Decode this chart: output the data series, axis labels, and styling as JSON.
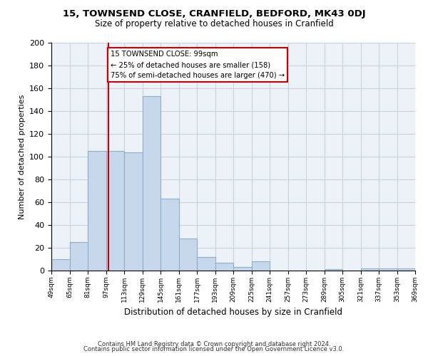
{
  "title": "15, TOWNSEND CLOSE, CRANFIELD, BEDFORD, MK43 0DJ",
  "subtitle": "Size of property relative to detached houses in Cranfield",
  "xlabel": "Distribution of detached houses by size in Cranfield",
  "ylabel": "Number of detached properties",
  "bar_color": "#c8d8ec",
  "bar_edge_color": "#8eaece",
  "vline_x": 99,
  "vline_color": "#cc0000",
  "annotation_lines": [
    "15 TOWNSEND CLOSE: 99sqm",
    "← 25% of detached houses are smaller (158)",
    "75% of semi-detached houses are larger (470) →"
  ],
  "annotation_box_color": "#ffffff",
  "annotation_box_edge_color": "#cc0000",
  "bin_edges": [
    49,
    65,
    81,
    97,
    113,
    129,
    145,
    161,
    177,
    193,
    209,
    225,
    241,
    257,
    273,
    289,
    305,
    321,
    337,
    353,
    369
  ],
  "bar_heights": [
    10,
    25,
    105,
    105,
    104,
    153,
    63,
    28,
    12,
    7,
    3,
    8,
    0,
    0,
    0,
    1,
    0,
    2,
    2,
    2
  ],
  "ylim": [
    0,
    200
  ],
  "yticks": [
    0,
    20,
    40,
    60,
    80,
    100,
    120,
    140,
    160,
    180,
    200
  ],
  "xtick_labels": [
    "49sqm",
    "65sqm",
    "81sqm",
    "97sqm",
    "113sqm",
    "129sqm",
    "145sqm",
    "161sqm",
    "177sqm",
    "193sqm",
    "209sqm",
    "225sqm",
    "241sqm",
    "257sqm",
    "273sqm",
    "289sqm",
    "305sqm",
    "321sqm",
    "337sqm",
    "353sqm",
    "369sqm"
  ],
  "footer_line1": "Contains HM Land Registry data © Crown copyright and database right 2024.",
  "footer_line2": "Contains public sector information licensed under the Open Government Licence v3.0.",
  "grid_color": "#c8d4e4",
  "background_color": "#edf1f8"
}
